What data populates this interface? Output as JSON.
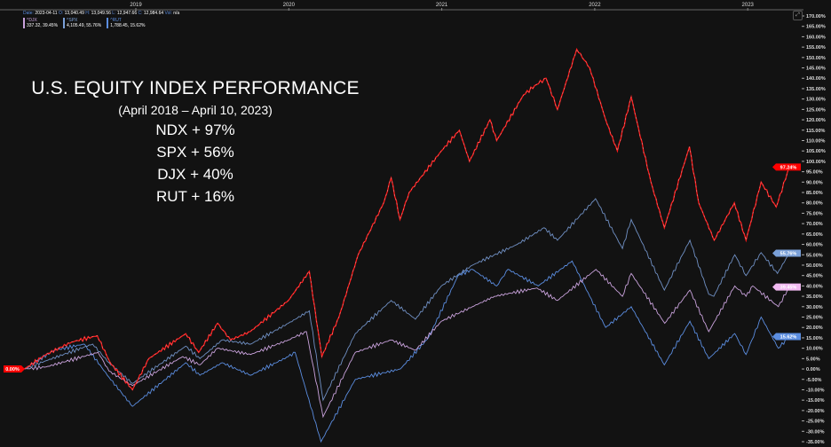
{
  "header": {
    "date_label": "Date:",
    "date": "2023-04-11",
    "open_label": "O:",
    "open": "13,040.49",
    "high_label": "H:",
    "high": "13,049.56",
    "low_label": "L:",
    "low": "12,947.66",
    "close_label": "C:",
    "close": "12,984.64",
    "vol_label": "Vol:",
    "vol": "n/a"
  },
  "legend": [
    {
      "symbol": "^DJX",
      "value": "337.32, 39.45%",
      "color": "#c9a2dc"
    },
    {
      "symbol": "^SPX",
      "value": "4,105.49, 55.76%",
      "color": "#7aa0d8"
    },
    {
      "symbol": "^RUT",
      "value": "1,788.45, 15.62%",
      "color": "#5b8de0"
    }
  ],
  "annotation": {
    "title": "U.S. EQUITY INDEX PERFORMANCE",
    "subtitle": "(April 2018 – April 10, 2023)",
    "results": [
      "NDX + 97%",
      "SPX + 56%",
      "DJX + 40%",
      "RUT + 16%"
    ]
  },
  "chart_data": {
    "type": "line",
    "title": "",
    "xlabel": "",
    "ylabel": "",
    "x_ticks": [
      "2019",
      "2020",
      "2021",
      "2022",
      "2023"
    ],
    "ylim": [
      -35,
      170
    ],
    "y_tick_step": 5,
    "y_tick_format": "percent-2dp",
    "grid": false,
    "axis_position": "right",
    "baseline_tag": "0.00%",
    "series": [
      {
        "name": "NDX",
        "color": "#ff1a1a",
        "last_tag": "97.24%",
        "points": [
          [
            "2018-04-10",
            0
          ],
          [
            "2018-06-01",
            7
          ],
          [
            "2018-08-01",
            13
          ],
          [
            "2018-10-01",
            16
          ],
          [
            "2018-11-01",
            3
          ],
          [
            "2018-12-24",
            -10
          ],
          [
            "2019-02-01",
            5
          ],
          [
            "2019-04-30",
            17
          ],
          [
            "2019-05-31",
            8
          ],
          [
            "2019-07-15",
            22
          ],
          [
            "2019-08-15",
            14
          ],
          [
            "2019-10-01",
            18
          ],
          [
            "2019-12-31",
            33
          ],
          [
            "2020-02-19",
            47
          ],
          [
            "2020-03-20",
            6
          ],
          [
            "2020-04-30",
            25
          ],
          [
            "2020-06-15",
            55
          ],
          [
            "2020-08-15",
            80
          ],
          [
            "2020-09-02",
            92
          ],
          [
            "2020-09-23",
            72
          ],
          [
            "2020-10-15",
            85
          ],
          [
            "2020-12-31",
            105
          ],
          [
            "2021-02-12",
            115
          ],
          [
            "2021-03-08",
            100
          ],
          [
            "2021-04-26",
            120
          ],
          [
            "2021-05-12",
            110
          ],
          [
            "2021-07-15",
            132
          ],
          [
            "2021-08-15",
            137
          ],
          [
            "2021-09-07",
            140
          ],
          [
            "2021-10-04",
            125
          ],
          [
            "2021-11-19",
            154
          ],
          [
            "2021-12-20",
            145
          ],
          [
            "2022-01-27",
            120
          ],
          [
            "2022-02-24",
            105
          ],
          [
            "2022-03-29",
            131
          ],
          [
            "2022-05-15",
            90
          ],
          [
            "2022-06-16",
            68
          ],
          [
            "2022-08-15",
            107
          ],
          [
            "2022-09-06",
            80
          ],
          [
            "2022-10-13",
            62
          ],
          [
            "2022-11-30",
            80
          ],
          [
            "2022-12-28",
            62
          ],
          [
            "2023-02-02",
            90
          ],
          [
            "2023-03-10",
            78
          ],
          [
            "2023-04-10",
            97.24
          ]
        ]
      },
      {
        "name": "SPX",
        "color": "#7090c4",
        "last_tag": "55.76%",
        "points": [
          [
            "2018-04-10",
            0
          ],
          [
            "2018-06-01",
            4
          ],
          [
            "2018-09-20",
            12
          ],
          [
            "2018-10-29",
            3
          ],
          [
            "2018-12-24",
            -7
          ],
          [
            "2019-04-30",
            11
          ],
          [
            "2019-06-03",
            5
          ],
          [
            "2019-07-26",
            14
          ],
          [
            "2019-10-02",
            12
          ],
          [
            "2019-12-31",
            22
          ],
          [
            "2020-02-19",
            28
          ],
          [
            "2020-03-23",
            -15
          ],
          [
            "2020-06-08",
            17
          ],
          [
            "2020-09-02",
            33
          ],
          [
            "2020-10-30",
            24
          ],
          [
            "2020-12-31",
            40
          ],
          [
            "2021-03-15",
            50
          ],
          [
            "2021-06-30",
            60
          ],
          [
            "2021-09-02",
            68
          ],
          [
            "2021-10-04",
            62
          ],
          [
            "2022-01-03",
            82
          ],
          [
            "2022-03-08",
            58
          ],
          [
            "2022-03-29",
            72
          ],
          [
            "2022-06-16",
            38
          ],
          [
            "2022-08-16",
            62
          ],
          [
            "2022-09-30",
            36
          ],
          [
            "2022-10-12",
            35
          ],
          [
            "2022-12-01",
            55
          ],
          [
            "2022-12-28",
            45
          ],
          [
            "2023-02-02",
            56
          ],
          [
            "2023-03-13",
            46
          ],
          [
            "2023-04-10",
            55.76
          ]
        ]
      },
      {
        "name": "DJX",
        "color": "#c9a2dc",
        "last_tag": "39.45%",
        "points": [
          [
            "2018-04-10",
            0
          ],
          [
            "2018-06-01",
            1
          ],
          [
            "2018-10-03",
            8
          ],
          [
            "2018-10-29",
            -1
          ],
          [
            "2018-12-24",
            -8
          ],
          [
            "2019-04-23",
            6
          ],
          [
            "2019-06-03",
            2
          ],
          [
            "2019-07-15",
            10
          ],
          [
            "2019-10-02",
            7
          ],
          [
            "2019-12-31",
            14
          ],
          [
            "2020-02-12",
            18
          ],
          [
            "2020-03-23",
            -23
          ],
          [
            "2020-06-08",
            8
          ],
          [
            "2020-09-02",
            14
          ],
          [
            "2020-10-30",
            9
          ],
          [
            "2020-12-31",
            23
          ],
          [
            "2021-03-15",
            30
          ],
          [
            "2021-05-07",
            35
          ],
          [
            "2021-08-16",
            39
          ],
          [
            "2021-10-04",
            33
          ],
          [
            "2022-01-04",
            48
          ],
          [
            "2022-03-08",
            35
          ],
          [
            "2022-03-29",
            46
          ],
          [
            "2022-06-17",
            22
          ],
          [
            "2022-08-16",
            38
          ],
          [
            "2022-09-30",
            18
          ],
          [
            "2022-12-01",
            40
          ],
          [
            "2022-12-28",
            35
          ],
          [
            "2023-01-13",
            40
          ],
          [
            "2023-03-15",
            30
          ],
          [
            "2023-04-10",
            39.45
          ]
        ]
      },
      {
        "name": "RUT",
        "color": "#5b8de0",
        "last_tag": "15.62%",
        "points": [
          [
            "2018-04-10",
            0
          ],
          [
            "2018-06-20",
            9
          ],
          [
            "2018-08-31",
            12
          ],
          [
            "2018-10-29",
            -4
          ],
          [
            "2018-12-24",
            -18
          ],
          [
            "2019-04-30",
            3
          ],
          [
            "2019-06-03",
            -3
          ],
          [
            "2019-07-26",
            3
          ],
          [
            "2019-10-02",
            -3
          ],
          [
            "2019-12-31",
            6
          ],
          [
            "2020-01-16",
            8
          ],
          [
            "2020-03-18",
            -35
          ],
          [
            "2020-06-08",
            -5
          ],
          [
            "2020-09-24",
            0
          ],
          [
            "2020-11-30",
            15
          ],
          [
            "2021-02-09",
            45
          ],
          [
            "2021-03-15",
            48
          ],
          [
            "2021-05-12",
            40
          ],
          [
            "2021-06-08",
            48
          ],
          [
            "2021-08-19",
            40
          ],
          [
            "2021-11-08",
            52
          ],
          [
            "2021-12-20",
            35
          ],
          [
            "2022-01-27",
            20
          ],
          [
            "2022-03-29",
            30
          ],
          [
            "2022-06-16",
            2
          ],
          [
            "2022-08-16",
            23
          ],
          [
            "2022-09-30",
            5
          ],
          [
            "2022-12-01",
            17
          ],
          [
            "2022-12-28",
            7
          ],
          [
            "2023-02-02",
            25
          ],
          [
            "2023-03-15",
            10
          ],
          [
            "2023-04-10",
            15.62
          ]
        ]
      }
    ]
  }
}
